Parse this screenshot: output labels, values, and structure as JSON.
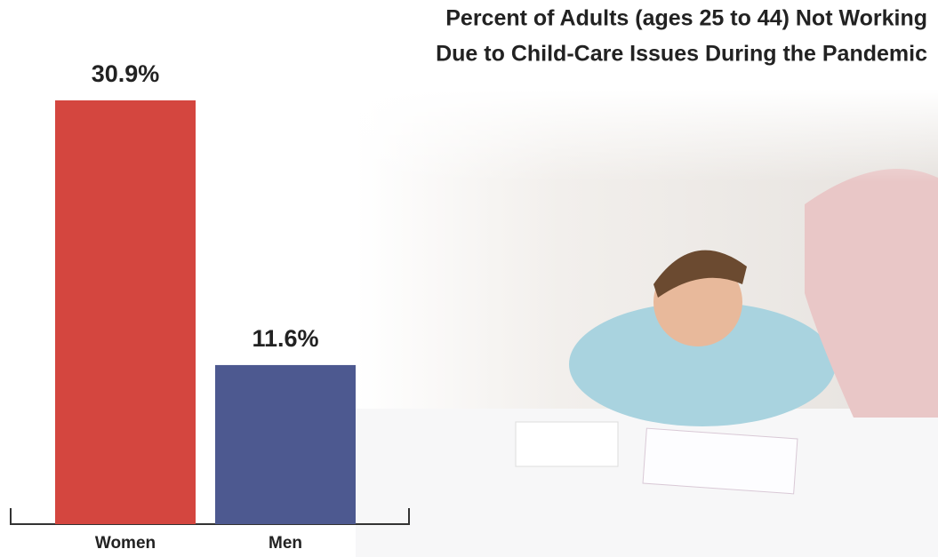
{
  "chart_data": {
    "type": "bar",
    "title": [
      "Percent of Adults (ages 25 to 44) Not Working",
      "Due to Child-Care Issues During the Pandemic"
    ],
    "categories": [
      "Women",
      "Men"
    ],
    "values": [
      30.9,
      11.6
    ],
    "value_labels": [
      "30.9%",
      "11.6%"
    ],
    "colors": [
      "#d4463f",
      "#4d5990"
    ]
  }
}
